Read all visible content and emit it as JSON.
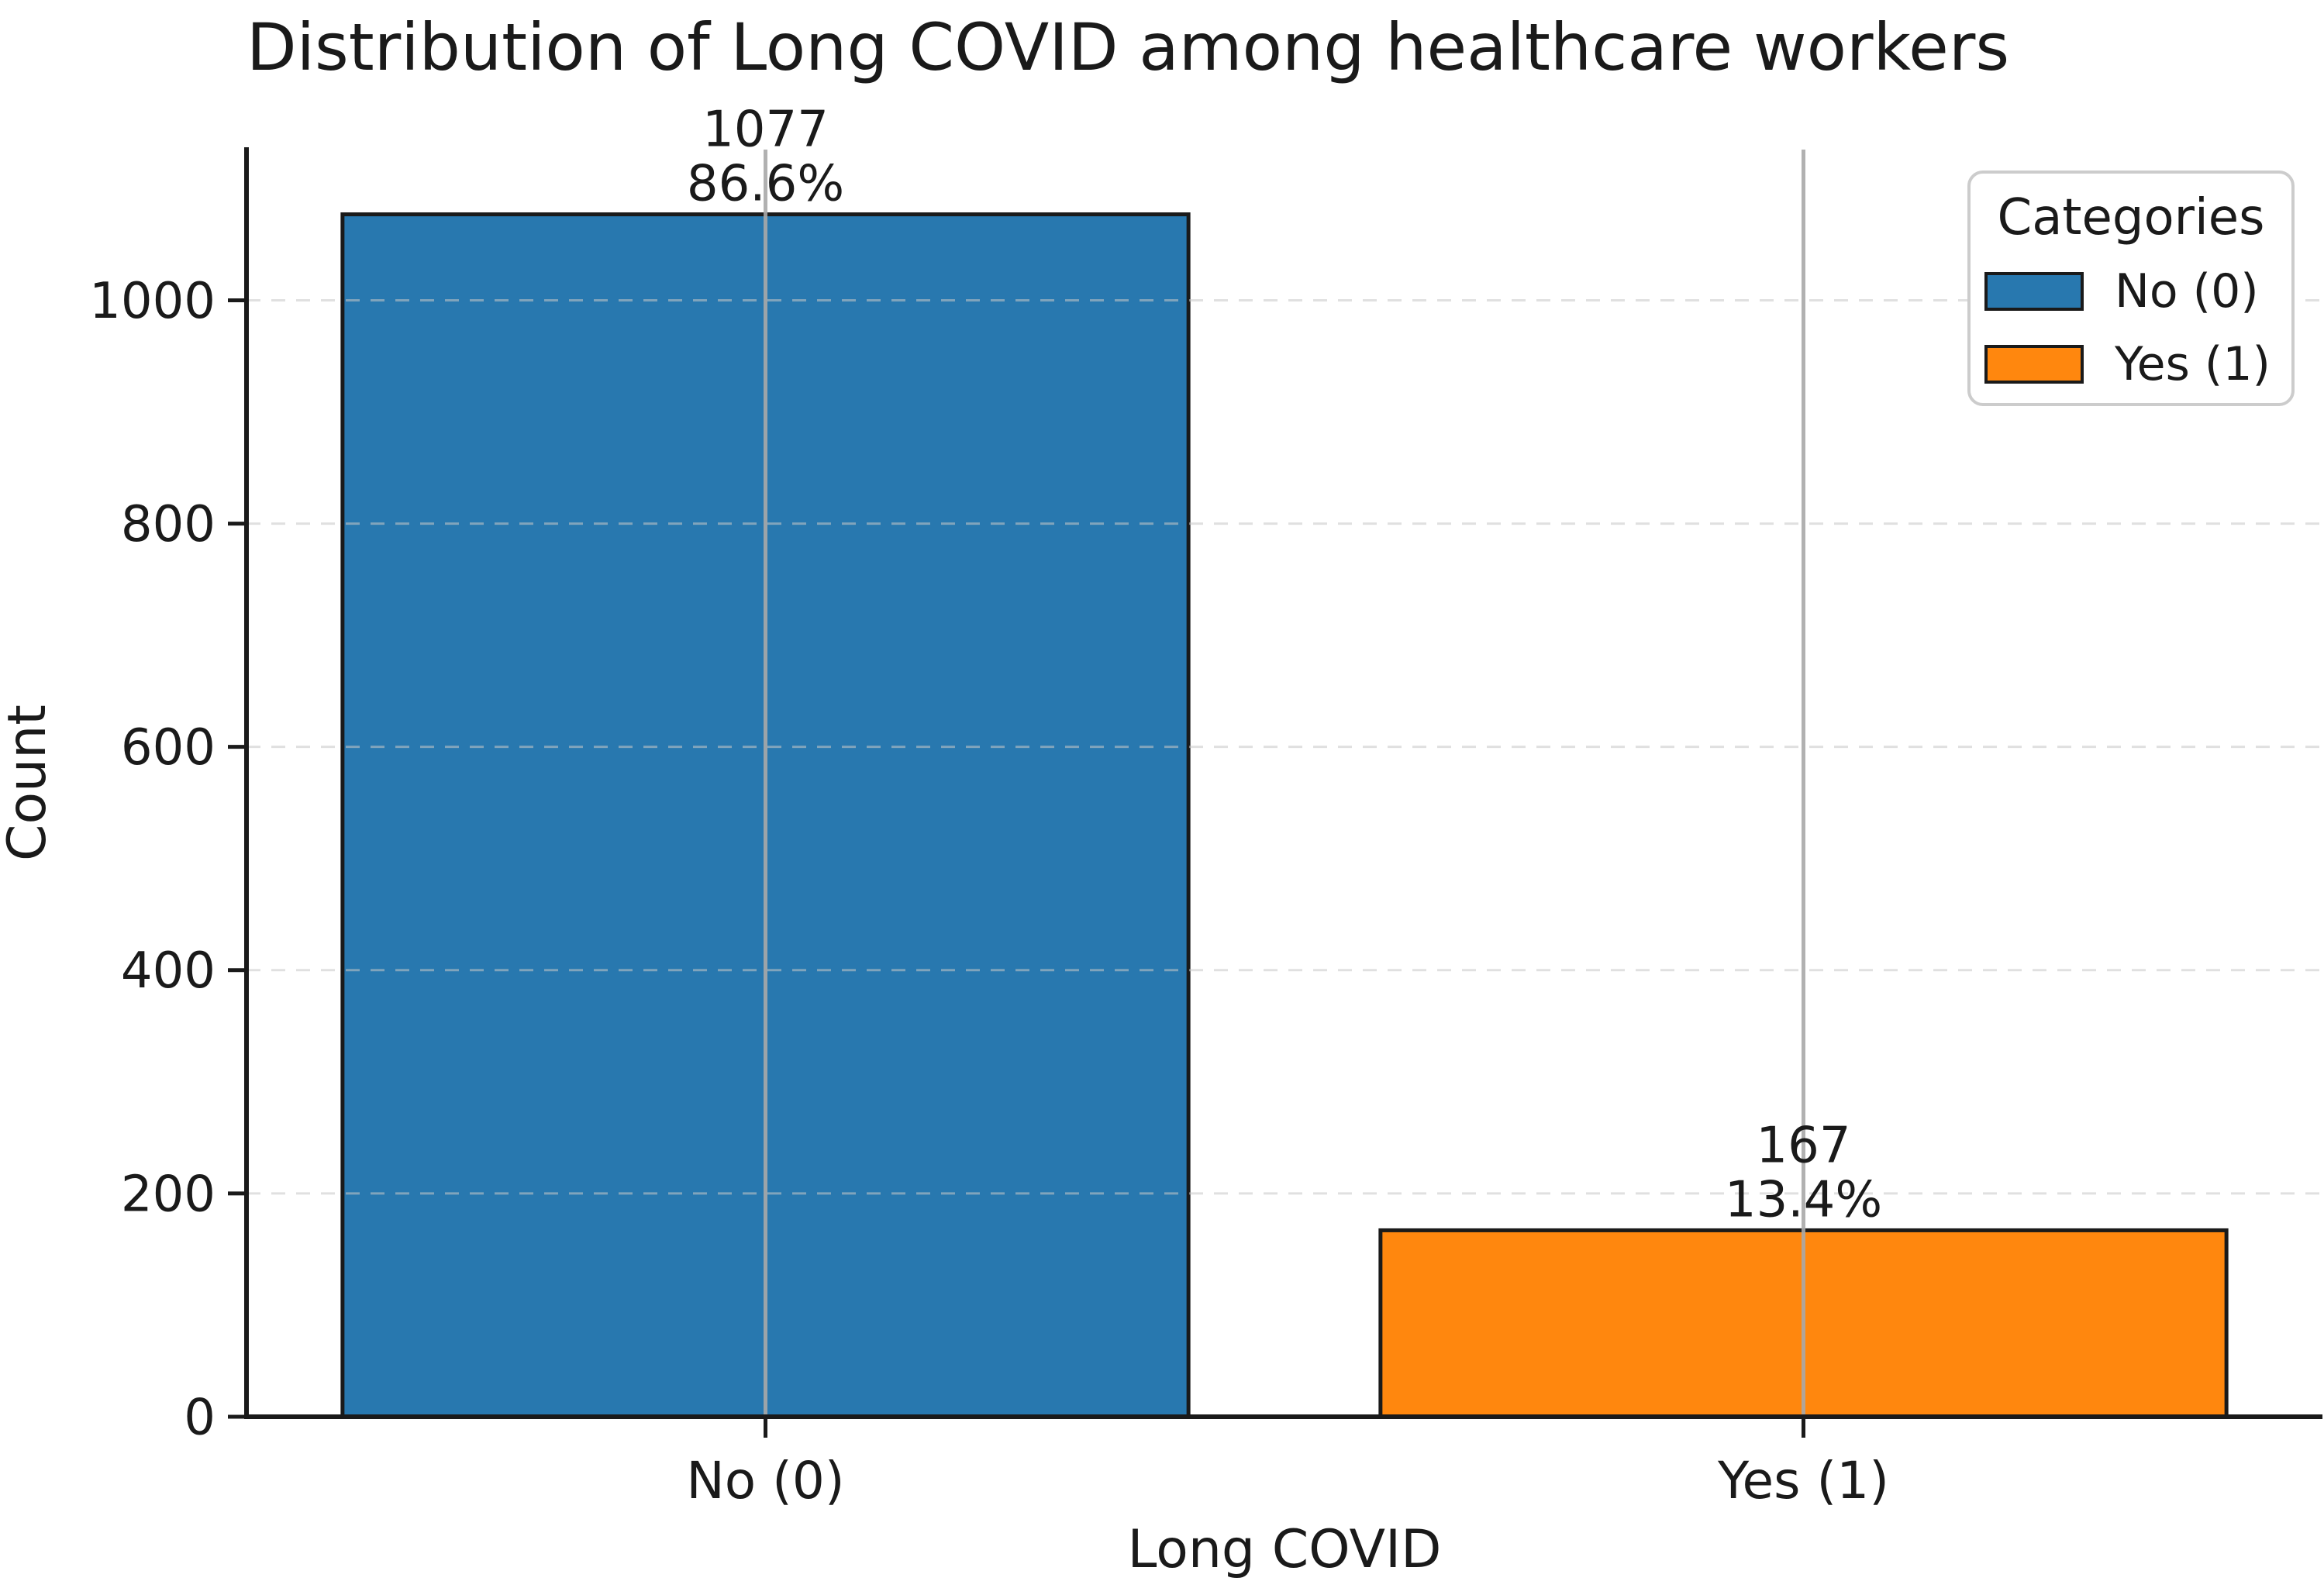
{
  "figure": {
    "background": "#ffffff",
    "text_color": "#1a1a1a"
  },
  "chart_data": {
    "type": "bar",
    "title": "Distribution of Long COVID among healthcare workers",
    "xlabel": "Long COVID",
    "ylabel": "Count",
    "categories": [
      "No (0)",
      "Yes (1)"
    ],
    "values": [
      1077,
      167
    ],
    "bars": [
      {
        "category": "No (0)",
        "value": 1077,
        "value_label": "1077",
        "percent_label": "86.6%",
        "color": "#2878af"
      },
      {
        "category": "Yes (1)",
        "value": 167,
        "value_label": "167",
        "percent_label": "13.4%",
        "color": "#ff870e"
      }
    ],
    "yticks": [
      0,
      200,
      400,
      600,
      800,
      1000
    ],
    "ylim": [
      0,
      1135
    ],
    "grid": true,
    "grid_axis": "y",
    "grid_style": "dashed",
    "grid_over_bars": true,
    "category_center_lines": true,
    "colors": {
      "bar_edge": "#1a1a1a",
      "axis": "#1a1a1a",
      "grid": "#c8c8c8",
      "center_line": "#a9a9a9",
      "legend_border": "#cccccc"
    },
    "legend": {
      "title": "Categories",
      "position": "upper right",
      "entries": [
        {
          "label": "No (0)",
          "color": "#2878af"
        },
        {
          "label": "Yes (1)",
          "color": "#ff870e"
        }
      ]
    }
  }
}
